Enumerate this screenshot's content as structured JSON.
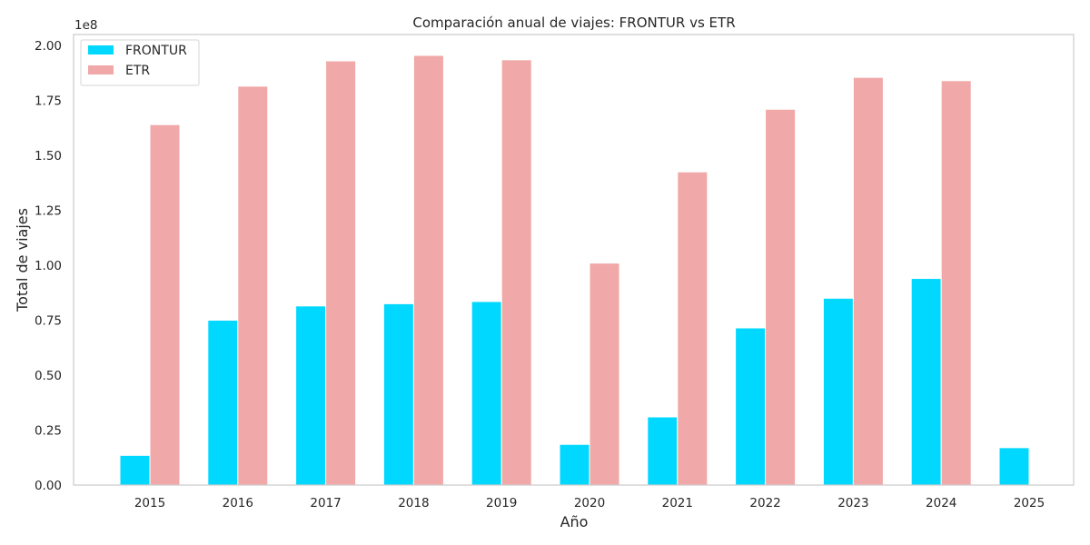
{
  "chart_data": {
    "type": "bar",
    "title": "Comparación anual de viajes: FRONTUR vs ETR",
    "xlabel": "Año",
    "ylabel": "Total de viajes",
    "y_offset_label": "1e8",
    "categories": [
      "2015",
      "2016",
      "2017",
      "2018",
      "2019",
      "2020",
      "2021",
      "2022",
      "2023",
      "2024",
      "2025"
    ],
    "series": [
      {
        "name": "FRONTUR",
        "color": "#00d8ff",
        "values": [
          13500000,
          75000000,
          81500000,
          82500000,
          83500000,
          18500000,
          31000000,
          71500000,
          85000000,
          94000000,
          17000000
        ]
      },
      {
        "name": "ETR",
        "color": "#f0a8a8",
        "values": [
          164000000,
          181500000,
          193000000,
          195500000,
          193500000,
          101000000,
          142500000,
          171000000,
          185500000,
          184000000,
          null
        ]
      }
    ],
    "ylim": [
      0,
      205000000
    ],
    "yticks": [
      0,
      25000000,
      50000000,
      75000000,
      100000000,
      125000000,
      150000000,
      175000000,
      200000000
    ],
    "ytick_labels": [
      "0.00",
      "0.25",
      "0.50",
      "0.75",
      "1.00",
      "1.25",
      "1.50",
      "1.75",
      "2.00"
    ],
    "grid": false,
    "legend_position": "top-left"
  }
}
